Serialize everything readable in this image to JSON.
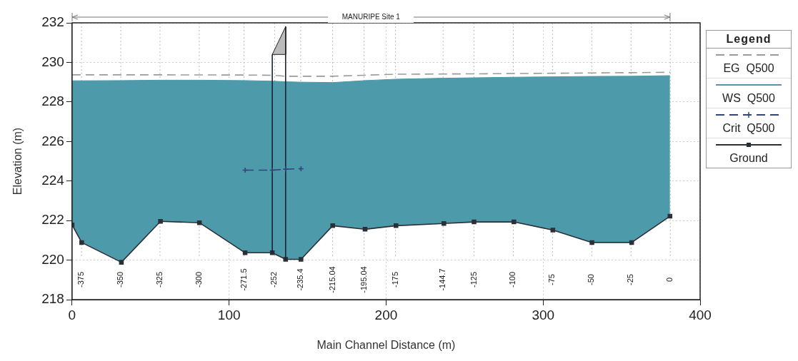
{
  "chart_data": {
    "type": "line",
    "title": "MANURIPE Site 1",
    "xlabel": "Main Channel Distance (m)",
    "ylabel": "Elevation (m)",
    "legend_title": "Legend",
    "legend": "right",
    "grid": true,
    "xlim": [
      0,
      400
    ],
    "xticks": [
      0,
      100,
      200,
      300,
      400
    ],
    "ylim": [
      218,
      232
    ],
    "yticks": [
      218,
      220,
      222,
      224,
      226,
      228,
      230,
      232
    ],
    "series": [
      {
        "name": "EG  Q500",
        "color": "#9a9a9a",
        "line_style": "dashed",
        "marker": "none",
        "x": [
          0,
          56,
          110,
          127.5,
          136,
          166,
          206,
          256,
          306,
          356,
          381
        ],
        "values": [
          229.37,
          229.37,
          229.36,
          229.35,
          229.3,
          229.3,
          229.4,
          229.42,
          229.45,
          229.48,
          229.5
        ]
      },
      {
        "name": "WS  Q500",
        "type": "area",
        "color": "#4d9aaa",
        "line_style": "solid",
        "marker": "none",
        "x": [
          0,
          6.1,
          31.4,
          56.3,
          81.1,
          110.2,
          127.5,
          136,
          145.8,
          166,
          186.6,
          206.3,
          236.8,
          256,
          281.4,
          306.2,
          331.1,
          356.4,
          380.8
        ],
        "values": [
          229.07,
          229.07,
          229.08,
          229.1,
          229.1,
          229.08,
          229.05,
          229.02,
          229.0,
          228.98,
          229.08,
          229.15,
          229.2,
          229.22,
          229.25,
          229.27,
          229.29,
          229.3,
          229.33
        ]
      },
      {
        "name": "Crit  Q500",
        "color": "#33457a",
        "line_style": "dashed",
        "marker": "cross",
        "x": [
          110.2,
          127.5,
          136,
          145.8
        ],
        "values": [
          224.55,
          224.55,
          224.6,
          224.62
        ]
      },
      {
        "type": "area",
        "color": "#bbbbbb",
        "line_style": "solid",
        "marker": "none",
        "x": [
          127.5,
          136,
          136,
          127.5
        ],
        "values": [
          230.4,
          231.8,
          230.4,
          230.4
        ]
      },
      {
        "color": "#1a2333",
        "line_style": "solid",
        "marker": "none",
        "x": [
          127.5,
          127.5
        ],
        "values": [
          220.37,
          230.4
        ]
      },
      {
        "color": "#1a2333",
        "line_style": "solid",
        "marker": "none",
        "x": [
          136,
          136
        ],
        "values": [
          231.8,
          220.04
        ]
      },
      {
        "name": "Ground",
        "color": "#2b3038",
        "line_style": "solid",
        "marker": "square",
        "x": [
          0,
          6.1,
          31.4,
          56.3,
          81.1,
          110.2,
          127.5,
          136,
          145.8,
          166,
          186.6,
          206.3,
          236.8,
          256,
          281.4,
          306.2,
          331.1,
          356.4,
          380.8
        ],
        "values": [
          221.78,
          220.89,
          219.89,
          221.96,
          221.89,
          220.37,
          220.37,
          220.04,
          220.04,
          221.74,
          221.56,
          221.74,
          221.85,
          221.93,
          221.93,
          221.52,
          220.89,
          220.89,
          222.22
        ]
      }
    ],
    "x2lim": [
      -381,
      19
    ],
    "x2ticks": [
      -375,
      -350,
      -325,
      -300,
      -271.5,
      -252,
      -235.4,
      -215.04,
      -195.04,
      -175,
      -144.7,
      -125,
      -100,
      -75,
      -50,
      -25,
      0
    ]
  }
}
